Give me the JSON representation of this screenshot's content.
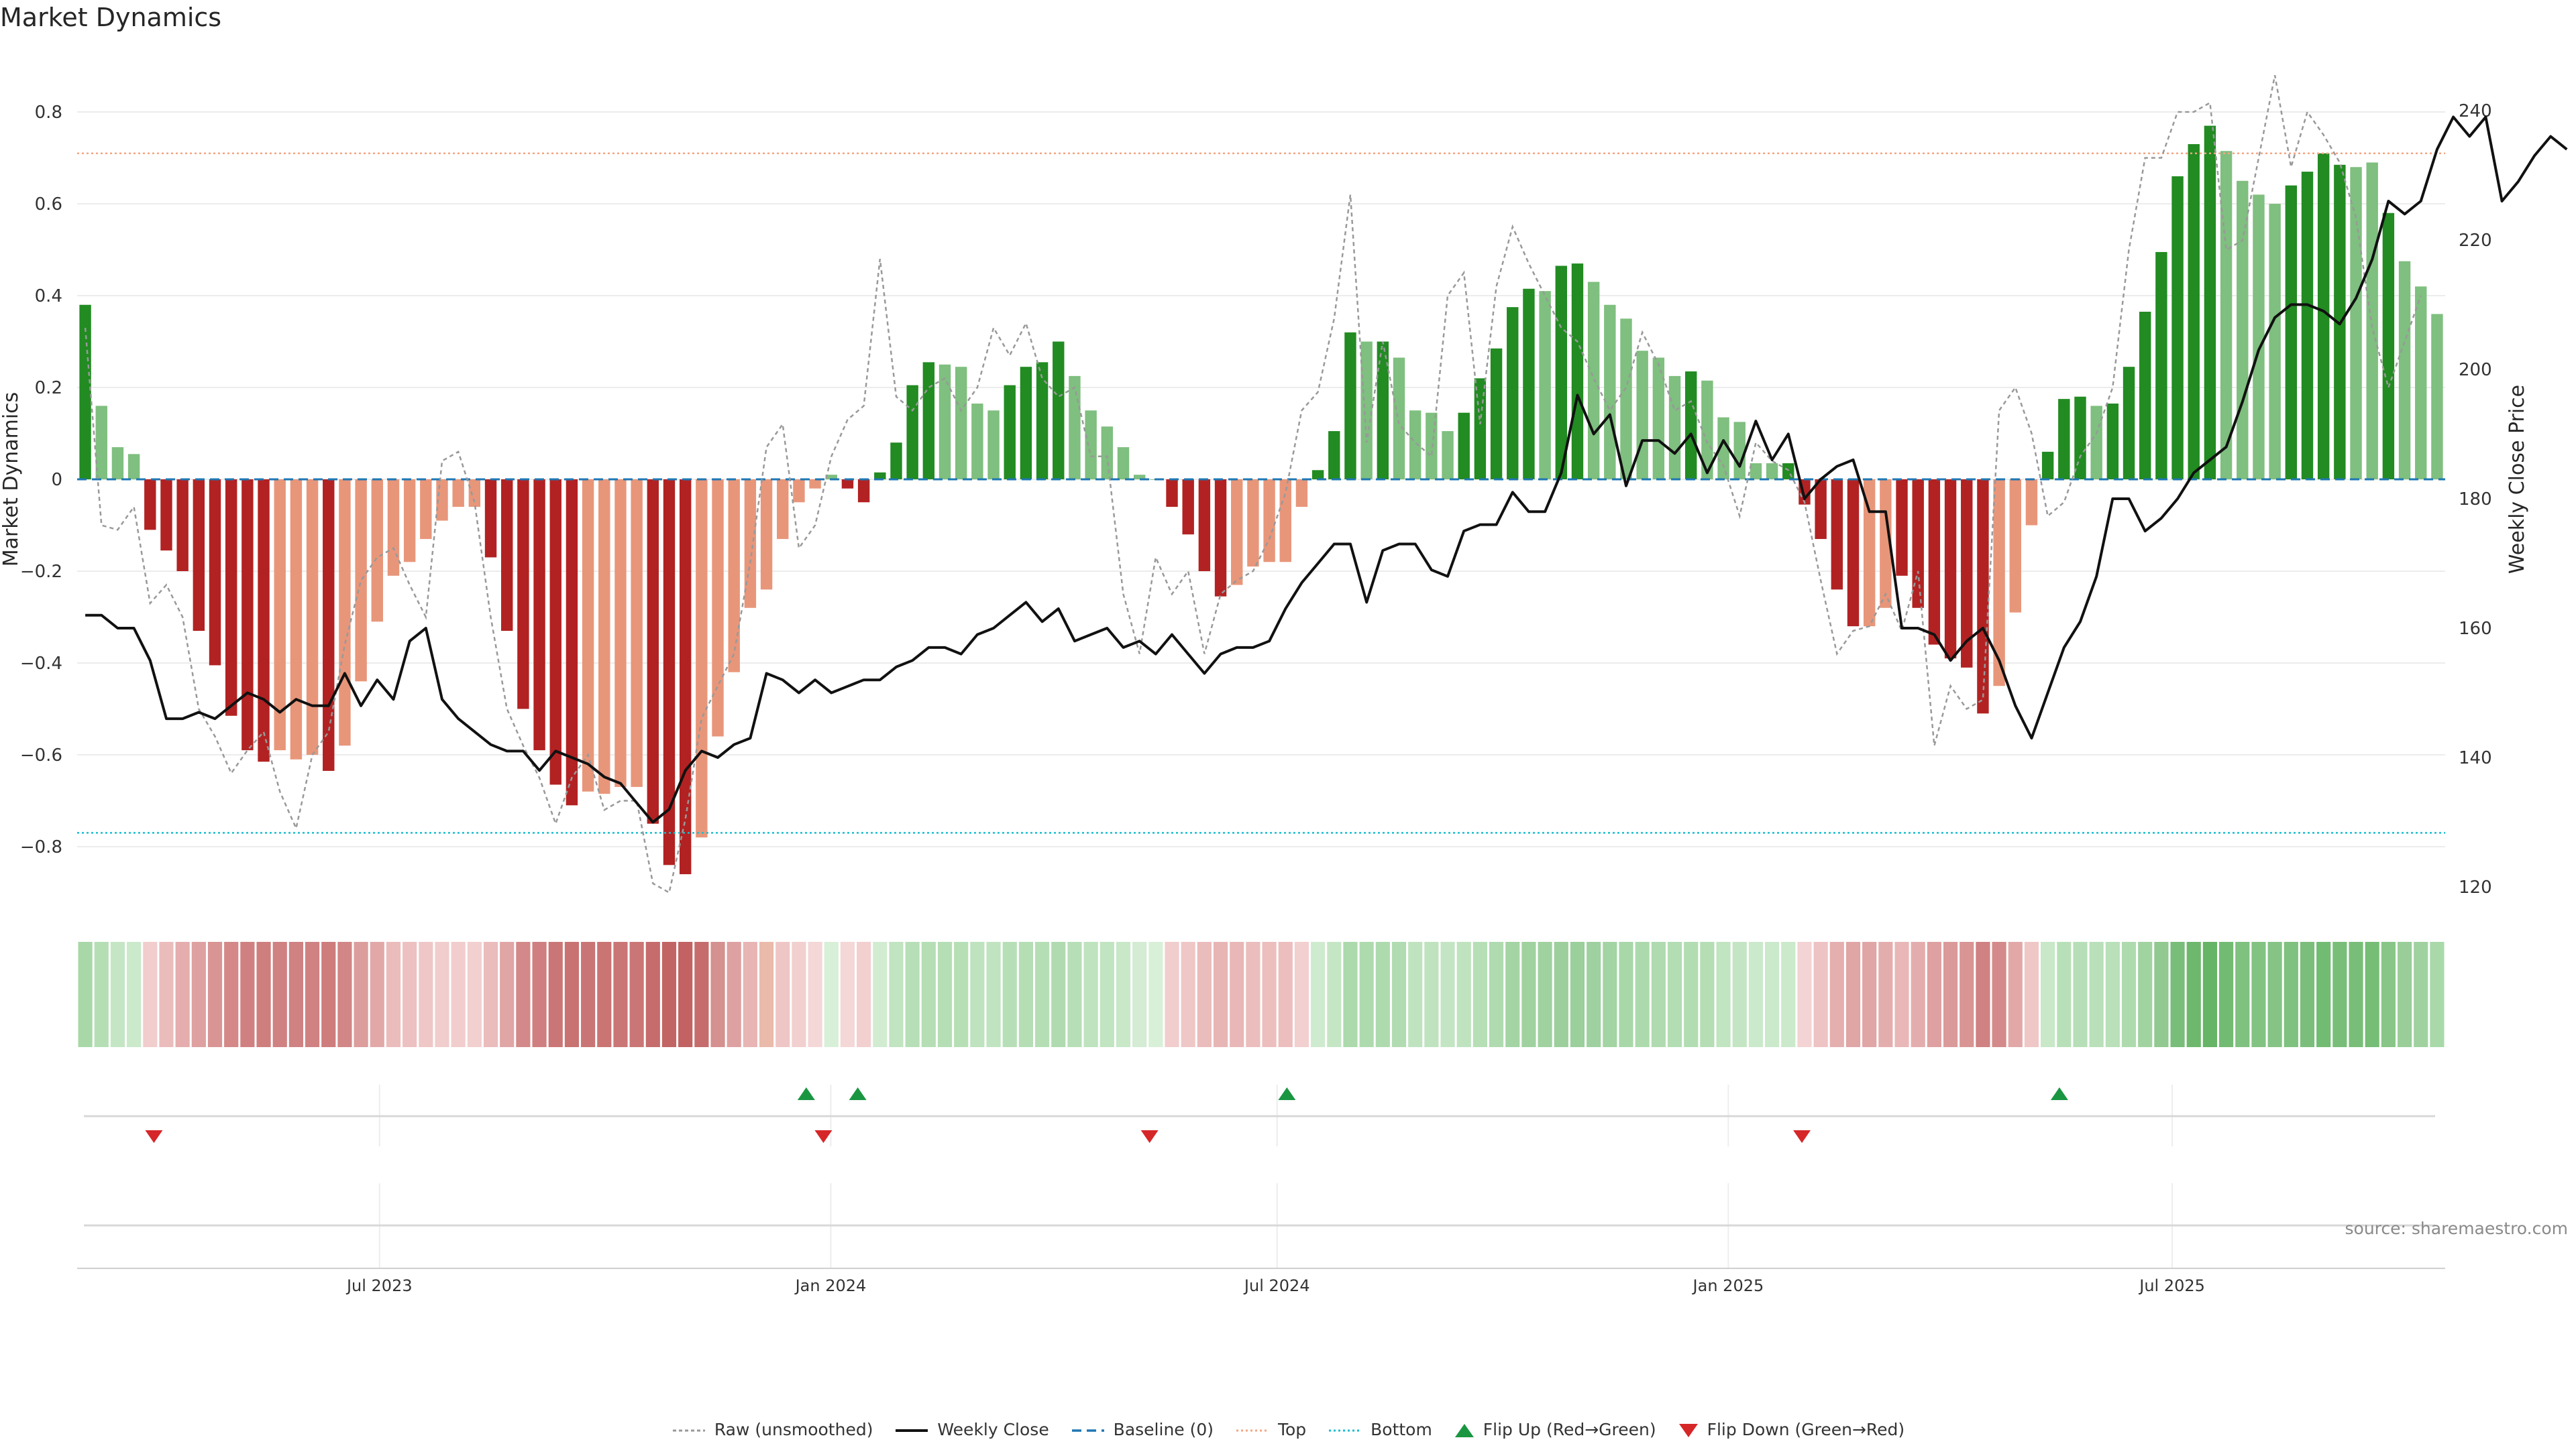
{
  "chart_data": {
    "type": "bar",
    "title": "Market Dynamics",
    "ylabel_left": "Market Dynamics",
    "ylabel_right": "Weekly Close Price",
    "ylim_left": [
      -0.93,
      0.93
    ],
    "ylim_right": [
      117,
      249
    ],
    "yticks_left": [
      0.8,
      0.6,
      0.4,
      0.2,
      0,
      -0.2,
      -0.4,
      -0.6,
      -0.8
    ],
    "ytick_labels_left": [
      "0.8",
      "0.6",
      "0.4",
      "0.2",
      "0",
      "−0.2",
      "−0.4",
      "−0.6",
      "−0.8"
    ],
    "yticks_right": [
      240,
      220,
      200,
      180,
      160,
      140,
      120
    ],
    "ytick_labels_right": [
      "240",
      "220",
      "200",
      "180",
      "160",
      "140",
      "120"
    ],
    "x_start": "2023-03-03",
    "x_end": "2025-10-17",
    "xticks": [
      "2023-07-01",
      "2024-01-01",
      "2024-07-01",
      "2025-01-01",
      "2025-07-01"
    ],
    "xtick_labels": [
      "Jul 2023",
      "Jan 2024",
      "Jul 2024",
      "Jan 2025",
      "Jul 2025"
    ],
    "top_level": 0.71,
    "bottom_level": -0.77,
    "baseline": 0,
    "market_dynamics": [
      0.38,
      0.16,
      0.07,
      0.055,
      -0.11,
      -0.155,
      -0.2,
      -0.33,
      -0.405,
      -0.515,
      -0.59,
      -0.615,
      -0.59,
      -0.61,
      -0.6,
      -0.635,
      -0.58,
      -0.44,
      -0.31,
      -0.21,
      -0.18,
      -0.13,
      -0.09,
      -0.06,
      -0.06,
      -0.17,
      -0.33,
      -0.5,
      -0.59,
      -0.665,
      -0.71,
      -0.68,
      -0.685,
      -0.67,
      -0.67,
      -0.75,
      -0.84,
      -0.86,
      -0.78,
      -0.56,
      -0.42,
      -0.28,
      -0.24,
      -0.13,
      -0.05,
      -0.02,
      0.01,
      -0.02,
      -0.05,
      0.015,
      0.08,
      0.205,
      0.255,
      0.25,
      0.245,
      0.165,
      0.15,
      0.205,
      0.245,
      0.255,
      0.3,
      0.225,
      0.15,
      0.115,
      0.07,
      0.01,
      0,
      -0.06,
      -0.12,
      -0.2,
      -0.255,
      -0.23,
      -0.19,
      -0.18,
      -0.18,
      -0.06,
      0.02,
      0.105,
      0.32,
      0.3,
      0.3,
      0.265,
      0.15,
      0.145,
      0.105,
      0.145,
      0.22,
      0.285,
      0.375,
      0.415,
      0.41,
      0.465,
      0.47,
      0.43,
      0.38,
      0.35,
      0.28,
      0.265,
      0.225,
      0.235,
      0.215,
      0.135,
      0.125,
      0.035,
      0.035,
      0.035,
      -0.055,
      -0.13,
      -0.24,
      -0.32,
      -0.32,
      -0.28,
      -0.21,
      -0.28,
      -0.36,
      -0.39,
      -0.41,
      -0.51,
      -0.45,
      -0.29,
      -0.1,
      0.06,
      0.175,
      0.18,
      0.16,
      0.165,
      0.245,
      0.365,
      0.495,
      0.66,
      0.73,
      0.77,
      0.715,
      0.65,
      0.62,
      0.6,
      0.64,
      0.67,
      0.71,
      0.685,
      0.68,
      0.69,
      0.58,
      0.475,
      0.42,
      0.36
    ],
    "bar_colors": [
      "#228b22",
      "#7fbf7f",
      "#7fbf7f",
      "#7fbf7f",
      "#b22222",
      "#b22222",
      "#b22222",
      "#b22222",
      "#b22222",
      "#b22222",
      "#b22222",
      "#b22222",
      "#e8967a",
      "#e8967a",
      "#e8967a",
      "#b22222",
      "#e8967a",
      "#e8967a",
      "#e8967a",
      "#e8967a",
      "#e8967a",
      "#e8967a",
      "#e8967a",
      "#e8967a",
      "#e8967a",
      "#b22222",
      "#b22222",
      "#b22222",
      "#b22222",
      "#b22222",
      "#b22222",
      "#e8967a",
      "#e8967a",
      "#e8967a",
      "#e8967a",
      "#b22222",
      "#b22222",
      "#b22222",
      "#e8967a",
      "#e8967a",
      "#e8967a",
      "#e8967a",
      "#e8967a",
      "#e8967a",
      "#e8967a",
      "#e8967a",
      "#7fbf7f",
      "#b22222",
      "#b22222",
      "#228b22",
      "#228b22",
      "#228b22",
      "#228b22",
      "#7fbf7f",
      "#7fbf7f",
      "#7fbf7f",
      "#7fbf7f",
      "#228b22",
      "#228b22",
      "#228b22",
      "#228b22",
      "#7fbf7f",
      "#7fbf7f",
      "#7fbf7f",
      "#7fbf7f",
      "#7fbf7f",
      "#7fbf7f",
      "#b22222",
      "#b22222",
      "#b22222",
      "#b22222",
      "#e8967a",
      "#e8967a",
      "#e8967a",
      "#e8967a",
      "#e8967a",
      "#228b22",
      "#228b22",
      "#228b22",
      "#7fbf7f",
      "#228b22",
      "#7fbf7f",
      "#7fbf7f",
      "#7fbf7f",
      "#7fbf7f",
      "#228b22",
      "#228b22",
      "#228b22",
      "#228b22",
      "#228b22",
      "#7fbf7f",
      "#228b22",
      "#228b22",
      "#7fbf7f",
      "#7fbf7f",
      "#7fbf7f",
      "#7fbf7f",
      "#7fbf7f",
      "#7fbf7f",
      "#228b22",
      "#7fbf7f",
      "#7fbf7f",
      "#7fbf7f",
      "#7fbf7f",
      "#7fbf7f",
      "#228b22",
      "#b22222",
      "#b22222",
      "#b22222",
      "#b22222",
      "#e8967a",
      "#e8967a",
      "#b22222",
      "#b22222",
      "#b22222",
      "#b22222",
      "#b22222",
      "#b22222",
      "#e8967a",
      "#e8967a",
      "#e8967a",
      "#228b22",
      "#228b22",
      "#228b22",
      "#7fbf7f",
      "#228b22",
      "#228b22",
      "#228b22",
      "#228b22",
      "#228b22",
      "#228b22",
      "#228b22",
      "#7fbf7f",
      "#7fbf7f",
      "#7fbf7f",
      "#7fbf7f",
      "#228b22",
      "#228b22",
      "#228b22",
      "#228b22",
      "#7fbf7f",
      "#7fbf7f",
      "#228b22",
      "#7fbf7f",
      "#7fbf7f",
      "#7fbf7f",
      "#7fbf7f"
    ],
    "raw_unsmoothed": [
      0.33,
      -0.1,
      -0.11,
      -0.06,
      -0.27,
      -0.23,
      -0.3,
      -0.5,
      -0.56,
      -0.64,
      -0.59,
      -0.55,
      -0.68,
      -0.76,
      -0.6,
      -0.55,
      -0.36,
      -0.22,
      -0.17,
      -0.15,
      -0.23,
      -0.3,
      0.04,
      0.06,
      -0.05,
      -0.3,
      -0.5,
      -0.58,
      -0.65,
      -0.75,
      -0.65,
      -0.6,
      -0.72,
      -0.7,
      -0.7,
      -0.88,
      -0.9,
      -0.74,
      -0.52,
      -0.45,
      -0.38,
      -0.18,
      0.07,
      0.12,
      -0.15,
      -0.1,
      0.05,
      0.13,
      0.16,
      0.48,
      0.18,
      0.15,
      0.2,
      0.22,
      0.15,
      0.2,
      0.33,
      0.27,
      0.34,
      0.22,
      0.18,
      0.2,
      0.05,
      0.05,
      -0.25,
      -0.38,
      -0.17,
      -0.25,
      -0.2,
      -0.38,
      -0.25,
      -0.22,
      -0.2,
      -0.13,
      -0.03,
      0.15,
      0.19,
      0.35,
      0.62,
      0.08,
      0.3,
      0.12,
      0.08,
      0.05,
      0.4,
      0.45,
      0.12,
      0.42,
      0.55,
      0.47,
      0.4,
      0.33,
      0.3,
      0.22,
      0.15,
      0.2,
      0.32,
      0.25,
      0.15,
      0.17,
      0.08,
      0.03,
      -0.08,
      0.08,
      0.04,
      0.02,
      -0.05,
      -0.22,
      -0.38,
      -0.33,
      -0.32,
      -0.25,
      -0.33,
      -0.2,
      -0.58,
      -0.45,
      -0.5,
      -0.48,
      0.15,
      0.2,
      0.1,
      -0.08,
      -0.05,
      0.05,
      0.1,
      0.2,
      0.5,
      0.7,
      0.7,
      0.8,
      0.8,
      0.82,
      0.5,
      0.52,
      0.7,
      0.88,
      0.68,
      0.8,
      0.75,
      0.69,
      0.57,
      0.33,
      0.2,
      0.3,
      0.4
    ],
    "weekly_close": [
      162,
      162,
      160,
      160,
      155,
      146,
      146,
      147,
      146,
      148,
      150,
      149,
      147,
      149,
      148,
      148,
      153,
      148,
      152,
      149,
      158,
      160,
      149,
      146,
      144,
      142,
      141,
      141,
      138,
      141,
      140,
      139,
      137,
      136,
      133,
      130,
      132,
      138,
      141,
      140,
      142,
      143,
      153,
      152,
      150,
      152,
      150,
      151,
      152,
      152,
      154,
      155,
      157,
      157,
      156,
      159,
      160,
      162,
      164,
      161,
      163,
      158,
      159,
      160,
      157,
      158,
      156,
      159,
      156,
      153,
      156,
      157,
      157,
      158,
      163,
      167,
      170,
      173,
      173,
      164,
      172,
      173,
      173,
      169,
      168,
      175,
      176,
      176,
      181,
      178,
      178,
      184,
      196,
      190,
      193,
      182,
      189,
      189,
      187,
      190,
      184,
      189,
      185,
      192,
      186,
      190,
      180,
      183,
      185,
      186,
      178,
      178,
      160,
      160,
      159,
      155,
      158,
      160,
      155,
      148,
      143,
      150,
      157,
      161,
      168,
      180,
      180,
      175,
      177,
      180,
      184,
      186,
      188,
      195,
      203,
      208,
      210,
      210,
      209,
      207,
      211,
      217,
      226,
      224,
      226,
      234,
      239,
      236,
      239,
      226,
      229,
      233,
      236,
      234
    ],
    "heat_colors": [
      "#a8d8a8",
      "#b5deb5",
      "#c5e6c5",
      "#cbe9cb",
      "#f1cdcd",
      "#ebbcbc",
      "#e5adad",
      "#dea0a0",
      "#d99494",
      "#d48888",
      "#d08080",
      "#cf7e7e",
      "#d08181",
      "#d08181",
      "#d08282",
      "#ce7c7c",
      "#d28686",
      "#dc9d9d",
      "#e2a8a8",
      "#ebbcbc",
      "#edc1c1",
      "#efc7c7",
      "#f1cdcd",
      "#f1cdcd",
      "#f2d0d0",
      "#ebbcbc",
      "#e0a5a5",
      "#d38989",
      "#cf7f7f",
      "#cb7676",
      "#c97272",
      "#ca7575",
      "#ca7474",
      "#cb7676",
      "#cb7676",
      "#c66c6c",
      "#c36464",
      "#c26262",
      "#c66c6c",
      "#d59090",
      "#dea1a1",
      "#e8b4b4",
      "#eabaaa",
      "#efc6c6",
      "#f2d0d0",
      "#f4d7d7",
      "#d8efd8",
      "#f4d7d7",
      "#f2d0d0",
      "#d2ecd2",
      "#c1e4c1",
      "#b7dfb7",
      "#b5deb5",
      "#b5deb5",
      "#b6dfb6",
      "#bee3be",
      "#c0e4c0",
      "#b7dfb7",
      "#b5deb5",
      "#b5deb5",
      "#b0dbb0",
      "#b7dfb7",
      "#bee3be",
      "#c1e4c1",
      "#c8e8c8",
      "#d3ecd3",
      "#d8efd8",
      "#f1cdcd",
      "#efc7c7",
      "#ebbcbc",
      "#e8b5b5",
      "#e9b7b7",
      "#ebbdbd",
      "#ecbebe",
      "#ecbebe",
      "#f2d0d0",
      "#cfebcf",
      "#c5e6c5",
      "#acdaac",
      "#aedbae",
      "#aedbae",
      "#b1dcb1",
      "#bfe3bf",
      "#bfe3bf",
      "#c4e5c4",
      "#bfe3bf",
      "#b6dfb6",
      "#b0dbb0",
      "#a4d4a4",
      "#a0d2a0",
      "#a0d2a0",
      "#9ccf9c",
      "#9bcf9b",
      "#9fd1a0",
      "#a3d4a3",
      "#a8d8a8",
      "#acdaac",
      "#b0dbb0",
      "#b3ddb3",
      "#b2ddb2",
      "#b5deb5",
      "#c1e4c1",
      "#c3e5c3",
      "#cbe9cb",
      "#cbe9cb",
      "#cbe9cb",
      "#f3d3d3",
      "#eec3c3",
      "#e5afaf",
      "#e0a5a5",
      "#e0a5a5",
      "#e4adad",
      "#e9b7b7",
      "#e4adad",
      "#dea0a0",
      "#db9a9a",
      "#d99494",
      "#d08181",
      "#d48a8a",
      "#e2a8a8",
      "#efc7c7",
      "#c8e8c8",
      "#b8e0b8",
      "#b7dfb7",
      "#b9e0b9",
      "#b9e0b9",
      "#aedbae",
      "#a1d3a1",
      "#91c991",
      "#78be7a",
      "#6db86d",
      "#66b466",
      "#72bb73",
      "#7fc17f",
      "#82c382",
      "#85c485",
      "#7fc17f",
      "#7bbe7b",
      "#72bb73",
      "#78be78",
      "#78be78",
      "#76bd76",
      "#88c688",
      "#99ce99",
      "#a0d2a0",
      "#a9d9a9"
    ],
    "flip_up": [
      "2023-12-22",
      "2024-01-12",
      "2024-07-05",
      "2025-05-16"
    ],
    "flip_down": [
      "2023-03-31",
      "2023-12-29",
      "2024-05-10",
      "2025-01-31"
    ],
    "legend": [
      {
        "key": "raw",
        "label": "Raw (unsmoothed)"
      },
      {
        "key": "close",
        "label": "Weekly Close"
      },
      {
        "key": "baseline",
        "label": "Baseline (0)"
      },
      {
        "key": "top",
        "label": "Top"
      },
      {
        "key": "bottom",
        "label": "Bottom"
      },
      {
        "key": "flipup",
        "label": "Flip Up (Red→Green)"
      },
      {
        "key": "flipdown",
        "label": "Flip Down (Green→Red)"
      }
    ],
    "legend_position": "bottom-center",
    "grid": true,
    "source_note": "source: sharemaestro.com"
  },
  "colors": {
    "raw": "#999999",
    "close": "#111111",
    "baseline": "#1f77b4",
    "top": "#f4a582",
    "bottom": "#17becf",
    "flip_up": "#1a9641",
    "flip_down": "#d62728"
  }
}
